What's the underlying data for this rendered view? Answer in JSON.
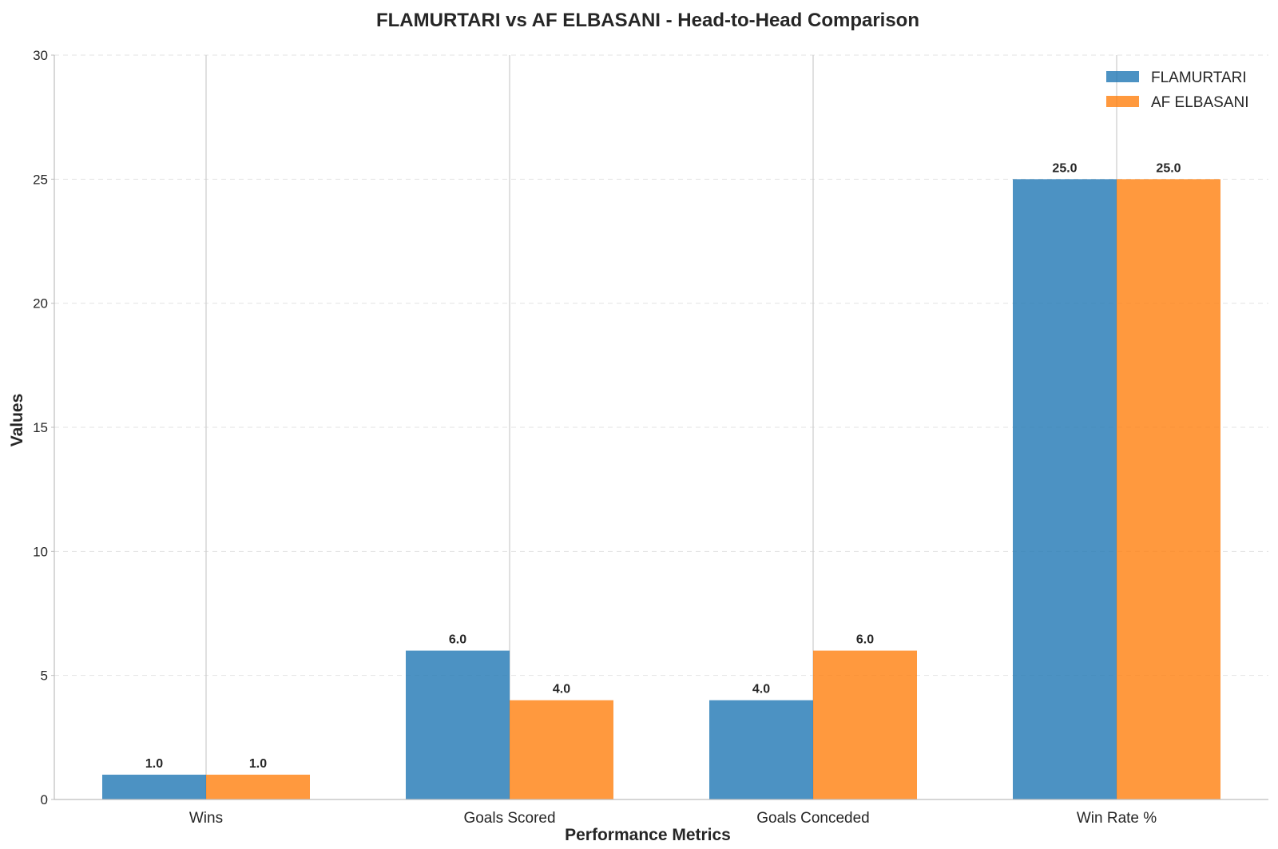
{
  "chart_data": {
    "type": "bar",
    "title": "FLAMURTARI vs AF ELBASANI - Head-to-Head Comparison",
    "xlabel": "Performance Metrics",
    "ylabel": "Values",
    "categories": [
      "Wins",
      "Goals Scored",
      "Goals Conceded",
      "Win Rate %"
    ],
    "series": [
      {
        "name": "FLAMURTARI",
        "values": [
          1.0,
          6.0,
          4.0,
          25.0
        ],
        "labels": [
          "1.0",
          "6.0",
          "4.0",
          "25.0"
        ],
        "color": "#1f77b4"
      },
      {
        "name": "AF ELBASANI",
        "values": [
          1.0,
          4.0,
          6.0,
          25.0
        ],
        "labels": [
          "1.0",
          "4.0",
          "6.0",
          "25.0"
        ],
        "color": "#ff7f0e"
      }
    ],
    "ylim": [
      0,
      30
    ],
    "yticks": [
      0,
      5,
      10,
      15,
      20,
      25,
      30
    ],
    "ytick_labels": [
      "0",
      "5",
      "10",
      "15",
      "20",
      "25",
      "30"
    ],
    "grid": {
      "y": true,
      "y_style": "dashed",
      "x_at_categories": true
    },
    "legend": {
      "position": "top-right"
    },
    "bar_opacity": 0.8
  }
}
